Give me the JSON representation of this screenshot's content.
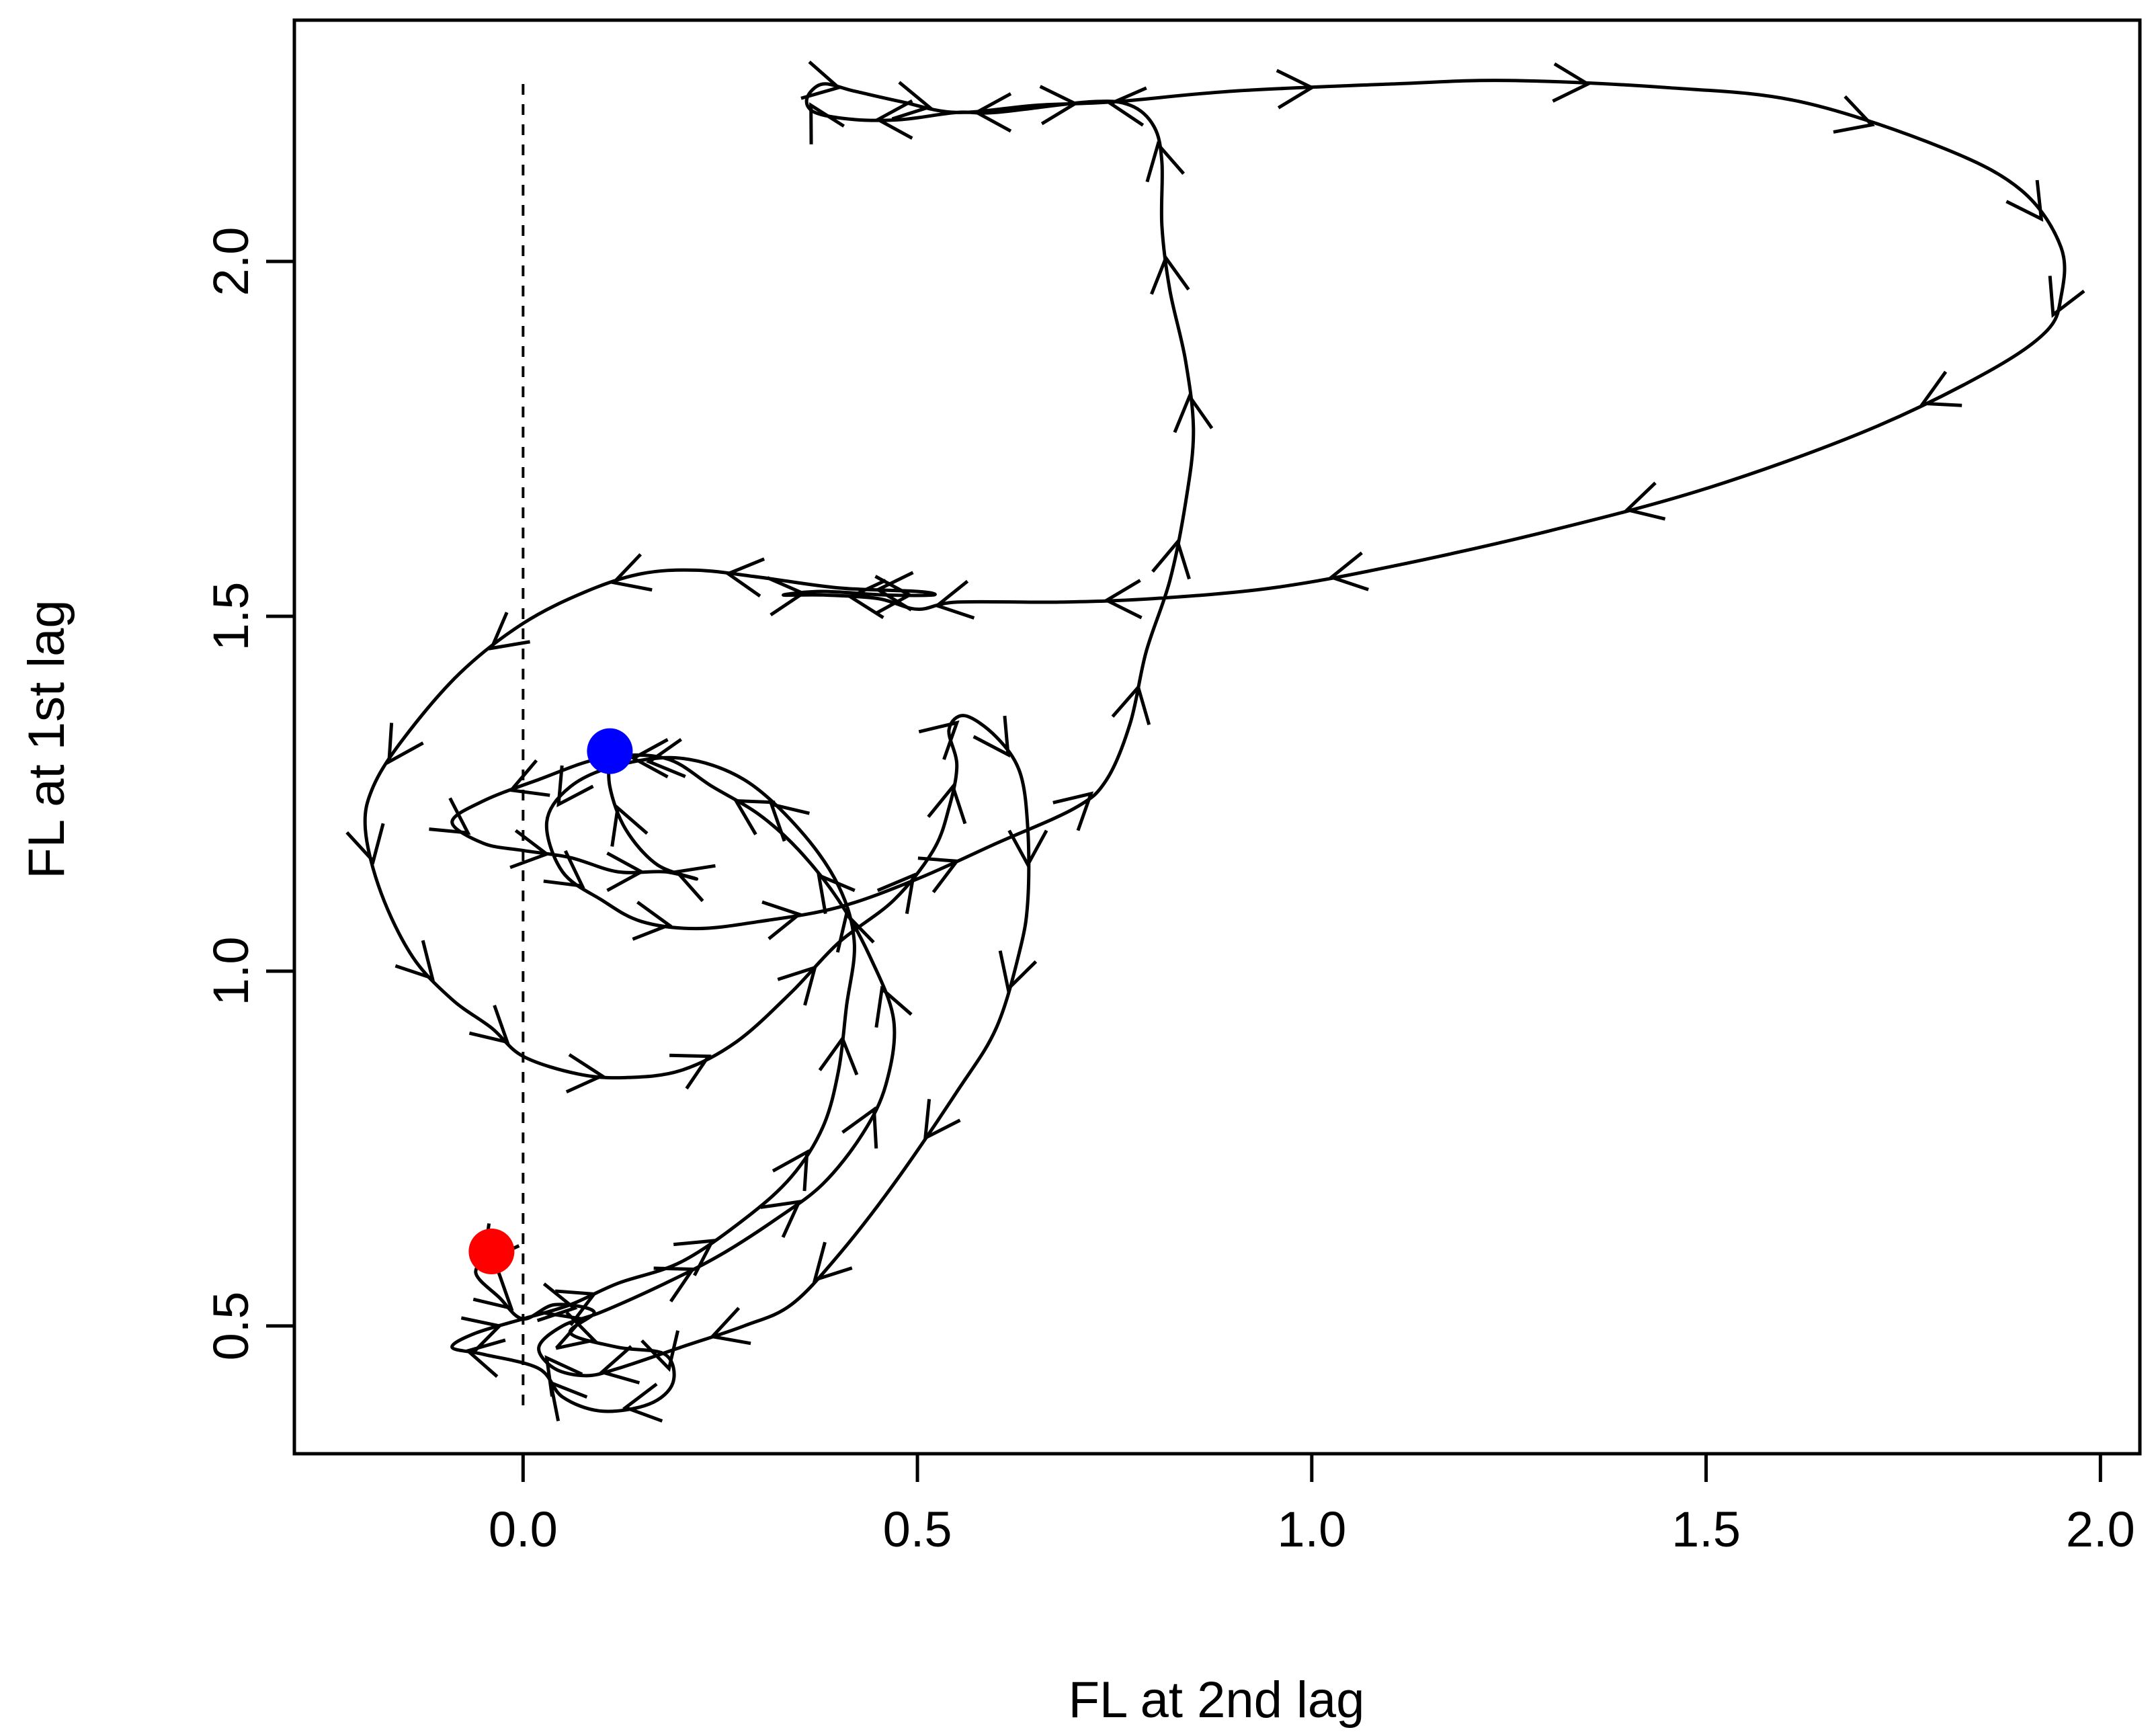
{
  "chart_data": {
    "type": "line",
    "title": "",
    "xlabel": "FL at 2nd lag",
    "ylabel": "FL at 1st lag",
    "xlim": [
      -0.29,
      2.05
    ],
    "ylim": [
      0.32,
      2.34
    ],
    "xticks": [
      0.0,
      0.5,
      1.0,
      1.5,
      2.0
    ],
    "xtick_labels": [
      "0.0",
      "0.5",
      "1.0",
      "1.5",
      "2.0"
    ],
    "yticks": [
      0.5,
      1.0,
      1.5,
      2.0
    ],
    "ytick_labels": [
      "0.5",
      "1.0",
      "1.5",
      "2.0"
    ],
    "grid": false,
    "legend": "none",
    "reference_line": {
      "x": 0.0,
      "y_range": [
        0.38,
        2.25
      ],
      "style": "dashed"
    },
    "start_point": {
      "x": -0.04,
      "y": 0.605,
      "color": "#ff0000"
    },
    "end_point": {
      "x": 0.11,
      "y": 1.31,
      "color": "#0000ff"
    },
    "line_color": "#000000",
    "trajectory": [
      [
        -0.04,
        0.605
      ],
      [
        -0.06,
        0.575
      ],
      [
        -0.03,
        0.54
      ],
      [
        0.0,
        0.51
      ],
      [
        0.04,
        0.53
      ],
      [
        0.09,
        0.52
      ],
      [
        0.06,
        0.49
      ],
      [
        0.12,
        0.47
      ],
      [
        0.18,
        0.46
      ],
      [
        0.19,
        0.42
      ],
      [
        0.16,
        0.39
      ],
      [
        0.1,
        0.38
      ],
      [
        0.05,
        0.4
      ],
      [
        0.02,
        0.44
      ],
      [
        -0.05,
        0.46
      ],
      [
        -0.09,
        0.47
      ],
      [
        -0.06,
        0.49
      ],
      [
        0.0,
        0.51
      ],
      [
        0.06,
        0.53
      ],
      [
        0.12,
        0.56
      ],
      [
        0.2,
        0.59
      ],
      [
        0.28,
        0.65
      ],
      [
        0.34,
        0.71
      ],
      [
        0.38,
        0.78
      ],
      [
        0.4,
        0.86
      ],
      [
        0.41,
        0.95
      ],
      [
        0.42,
        1.04
      ],
      [
        0.4,
        1.12
      ],
      [
        0.35,
        1.2
      ],
      [
        0.28,
        1.27
      ],
      [
        0.2,
        1.3
      ],
      [
        0.12,
        1.29
      ],
      [
        0.06,
        1.26
      ],
      [
        0.03,
        1.21
      ],
      [
        0.05,
        1.14
      ],
      [
        0.1,
        1.1
      ],
      [
        0.15,
        1.07
      ],
      [
        0.22,
        1.06
      ],
      [
        0.3,
        1.07
      ],
      [
        0.4,
        1.09
      ],
      [
        0.5,
        1.13
      ],
      [
        0.6,
        1.18
      ],
      [
        0.7,
        1.23
      ],
      [
        0.74,
        1.27
      ],
      [
        0.77,
        1.35
      ],
      [
        0.79,
        1.45
      ],
      [
        0.82,
        1.55
      ],
      [
        0.84,
        1.66
      ],
      [
        0.85,
        1.76
      ],
      [
        0.84,
        1.86
      ],
      [
        0.82,
        1.96
      ],
      [
        0.81,
        2.05
      ],
      [
        0.81,
        2.14
      ],
      [
        0.8,
        2.19
      ],
      [
        0.77,
        2.22
      ],
      [
        0.72,
        2.225
      ],
      [
        0.6,
        2.21
      ],
      [
        0.55,
        2.21
      ],
      [
        0.48,
        2.2
      ],
      [
        0.42,
        2.2
      ],
      [
        0.37,
        2.21
      ],
      [
        0.36,
        2.23
      ],
      [
        0.38,
        2.25
      ],
      [
        0.42,
        2.24
      ],
      [
        0.48,
        2.225
      ],
      [
        0.55,
        2.21
      ],
      [
        0.65,
        2.22
      ],
      [
        0.75,
        2.225
      ],
      [
        0.9,
        2.24
      ],
      [
        1.1,
        2.25
      ],
      [
        1.25,
        2.255
      ],
      [
        1.45,
        2.245
      ],
      [
        1.62,
        2.225
      ],
      [
        1.8,
        2.16
      ],
      [
        1.9,
        2.1
      ],
      [
        1.95,
        2.02
      ],
      [
        1.95,
        1.95
      ],
      [
        1.93,
        1.9
      ],
      [
        1.85,
        1.84
      ],
      [
        1.7,
        1.76
      ],
      [
        1.5,
        1.68
      ],
      [
        1.3,
        1.62
      ],
      [
        1.1,
        1.57
      ],
      [
        0.95,
        1.54
      ],
      [
        0.8,
        1.525
      ],
      [
        0.68,
        1.52
      ],
      [
        0.55,
        1.52
      ],
      [
        0.5,
        1.51
      ],
      [
        0.45,
        1.525
      ],
      [
        0.38,
        1.53
      ],
      [
        0.33,
        1.53
      ],
      [
        0.38,
        1.535
      ],
      [
        0.46,
        1.53
      ],
      [
        0.52,
        1.53
      ],
      [
        0.5,
        1.535
      ],
      [
        0.4,
        1.54
      ],
      [
        0.3,
        1.555
      ],
      [
        0.22,
        1.565
      ],
      [
        0.15,
        1.56
      ],
      [
        0.08,
        1.535
      ],
      [
        0.0,
        1.49
      ],
      [
        -0.08,
        1.42
      ],
      [
        -0.15,
        1.33
      ],
      [
        -0.19,
        1.26
      ],
      [
        -0.2,
        1.2
      ],
      [
        -0.18,
        1.11
      ],
      [
        -0.14,
        1.02
      ],
      [
        -0.09,
        0.96
      ],
      [
        -0.04,
        0.92
      ],
      [
        0.0,
        0.88
      ],
      [
        0.07,
        0.855
      ],
      [
        0.13,
        0.85
      ],
      [
        0.2,
        0.86
      ],
      [
        0.27,
        0.9
      ],
      [
        0.34,
        0.97
      ],
      [
        0.4,
        1.04
      ],
      [
        0.47,
        1.1
      ],
      [
        0.52,
        1.17
      ],
      [
        0.54,
        1.23
      ],
      [
        0.55,
        1.29
      ],
      [
        0.54,
        1.34
      ],
      [
        0.56,
        1.36
      ],
      [
        0.6,
        1.33
      ],
      [
        0.63,
        1.28
      ],
      [
        0.64,
        1.2
      ],
      [
        0.64,
        1.1
      ],
      [
        0.63,
        1.03
      ],
      [
        0.6,
        0.92
      ],
      [
        0.55,
        0.83
      ],
      [
        0.47,
        0.7
      ],
      [
        0.4,
        0.6
      ],
      [
        0.34,
        0.53
      ],
      [
        0.28,
        0.5
      ],
      [
        0.2,
        0.47
      ],
      [
        0.12,
        0.44
      ],
      [
        0.08,
        0.43
      ],
      [
        0.04,
        0.44
      ],
      [
        0.02,
        0.47
      ],
      [
        0.05,
        0.5
      ],
      [
        0.1,
        0.52
      ],
      [
        0.18,
        0.56
      ],
      [
        0.25,
        0.6
      ],
      [
        0.32,
        0.65
      ],
      [
        0.38,
        0.7
      ],
      [
        0.43,
        0.77
      ],
      [
        0.46,
        0.84
      ],
      [
        0.47,
        0.93
      ],
      [
        0.44,
        1.02
      ],
      [
        0.4,
        1.1
      ],
      [
        0.35,
        1.17
      ],
      [
        0.3,
        1.22
      ],
      [
        0.24,
        1.26
      ],
      [
        0.18,
        1.3
      ],
      [
        0.1,
        1.3
      ],
      [
        0.02,
        1.27
      ],
      [
        -0.05,
        1.24
      ],
      [
        -0.09,
        1.21
      ],
      [
        -0.05,
        1.18
      ],
      [
        0.0,
        1.17
      ],
      [
        0.06,
        1.16
      ],
      [
        0.12,
        1.14
      ],
      [
        0.18,
        1.14
      ],
      [
        0.22,
        1.13
      ],
      [
        0.17,
        1.15
      ],
      [
        0.13,
        1.2
      ],
      [
        0.11,
        1.26
      ],
      [
        0.11,
        1.31
      ]
    ]
  }
}
